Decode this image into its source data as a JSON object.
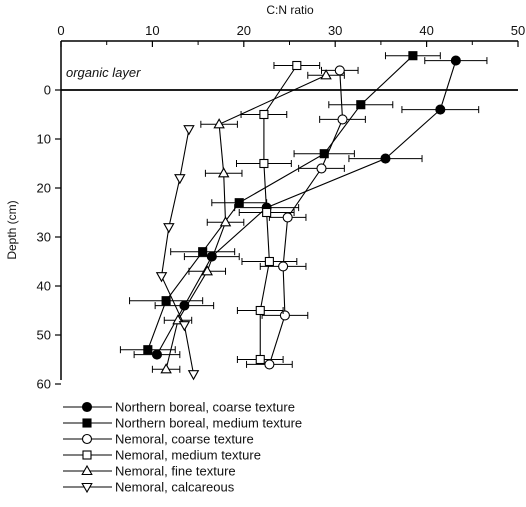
{
  "chart_data": {
    "type": "line",
    "title": "",
    "xlabel": "C:N ratio",
    "ylabel": "Depth (cm)",
    "xlim": [
      0,
      50
    ],
    "ylim": [
      -6,
      60
    ],
    "x_ticks": [
      0,
      10,
      20,
      30,
      40,
      50
    ],
    "y_ticks": [
      0,
      10,
      20,
      30,
      40,
      50,
      60
    ],
    "x_axis_position": "top",
    "y_axis_inverted": true,
    "grid": false,
    "legend_position": "bottom-left",
    "annotations": [
      {
        "text": "organic layer",
        "x": 0.8,
        "y": -3.5
      }
    ],
    "reference_line": {
      "y": 0
    },
    "series": [
      {
        "name": "Northern boreal, coarse texture",
        "marker": "filled-circle",
        "points": [
          {
            "x": 43.2,
            "y": -6,
            "xerr": 3.4
          },
          {
            "x": 41.5,
            "y": 4,
            "xerr": 4.2
          },
          {
            "x": 35.5,
            "y": 14,
            "xerr": 4.0
          },
          {
            "x": 22.5,
            "y": 24,
            "xerr": 3.5
          },
          {
            "x": 16.5,
            "y": 34,
            "xerr": 3.0
          },
          {
            "x": 13.5,
            "y": 44,
            "xerr": 3.2
          },
          {
            "x": 10.5,
            "y": 54,
            "xerr": 2.5
          }
        ]
      },
      {
        "name": "Northern boreal, medium texture",
        "marker": "filled-square",
        "points": [
          {
            "x": 38.5,
            "y": -7,
            "xerr": 3.0
          },
          {
            "x": 32.8,
            "y": 3,
            "xerr": 3.5
          },
          {
            "x": 28.8,
            "y": 13,
            "xerr": 3.3
          },
          {
            "x": 19.5,
            "y": 23,
            "xerr": 3.0
          },
          {
            "x": 15.5,
            "y": 33,
            "xerr": 3.5
          },
          {
            "x": 11.5,
            "y": 43,
            "xerr": 4.0
          },
          {
            "x": 9.5,
            "y": 53,
            "xerr": 3.0
          }
        ]
      },
      {
        "name": "Nemoral, coarse texture",
        "marker": "open-circle",
        "points": [
          {
            "x": 30.5,
            "y": -4,
            "xerr": 2.0
          },
          {
            "x": 30.8,
            "y": 6,
            "xerr": 2.5
          },
          {
            "x": 28.5,
            "y": 16,
            "xerr": 2.5
          },
          {
            "x": 24.8,
            "y": 26,
            "xerr": 2.0
          },
          {
            "x": 24.3,
            "y": 36,
            "xerr": 2.5
          },
          {
            "x": 24.5,
            "y": 46,
            "xerr": 2.5
          },
          {
            "x": 22.8,
            "y": 56,
            "xerr": 2.5
          }
        ]
      },
      {
        "name": "Nemoral, medium texture",
        "marker": "open-square",
        "points": [
          {
            "x": 25.8,
            "y": -5,
            "xerr": 2.5
          },
          {
            "x": 22.2,
            "y": 5,
            "xerr": 2.5
          },
          {
            "x": 22.2,
            "y": 15,
            "xerr": 3.0
          },
          {
            "x": 22.5,
            "y": 25,
            "xerr": 3.0
          },
          {
            "x": 22.8,
            "y": 35,
            "xerr": 3.0
          },
          {
            "x": 21.8,
            "y": 45,
            "xerr": 2.5
          },
          {
            "x": 21.8,
            "y": 55,
            "xerr": 2.5
          }
        ]
      },
      {
        "name": "Nemoral, fine texture",
        "marker": "open-triangle-up",
        "points": [
          {
            "x": 29.0,
            "y": -3,
            "xerr": 2.0
          },
          {
            "x": 17.3,
            "y": 7,
            "xerr": 2.0
          },
          {
            "x": 17.8,
            "y": 17,
            "xerr": 2.0
          },
          {
            "x": 18.0,
            "y": 27,
            "xerr": 2.0
          },
          {
            "x": 16.0,
            "y": 37,
            "xerr": 2.0
          },
          {
            "x": 12.8,
            "y": 47,
            "xerr": 1.5
          },
          {
            "x": 11.5,
            "y": 57,
            "xerr": 1.5
          }
        ]
      },
      {
        "name": "Nemoral, calcareous",
        "marker": "open-triangle-down",
        "points": [
          {
            "x": 14.0,
            "y": 8
          },
          {
            "x": 13.0,
            "y": 18
          },
          {
            "x": 11.8,
            "y": 28
          },
          {
            "x": 11.0,
            "y": 38
          },
          {
            "x": 13.5,
            "y": 48
          },
          {
            "x": 14.5,
            "y": 58
          }
        ]
      }
    ]
  }
}
